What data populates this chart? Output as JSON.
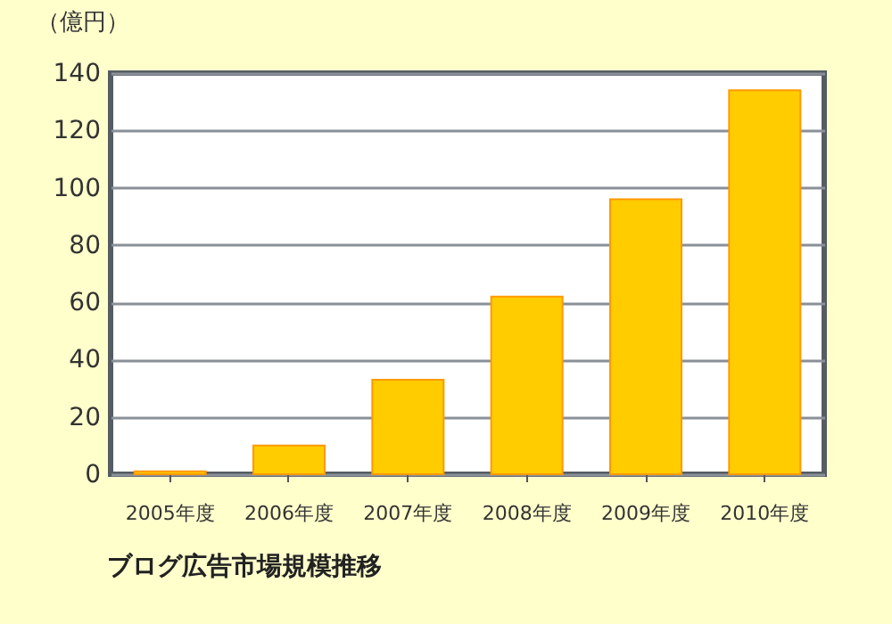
{
  "chart_data": {
    "type": "bar",
    "title": "ブログ広告市場規模推移",
    "ylabel": "（億円）",
    "categories": [
      "2005年度",
      "2006年度",
      "2007年度",
      "2008年度",
      "2009年度",
      "2010年度"
    ],
    "values": [
      1,
      10,
      33,
      62,
      96,
      134
    ],
    "color": "#ffcc00",
    "ylim": [
      0,
      140
    ],
    "yticks": [
      0,
      20,
      40,
      60,
      80,
      100,
      120,
      140
    ],
    "grid": "y"
  }
}
